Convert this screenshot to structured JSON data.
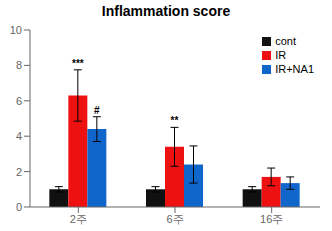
{
  "chart_data": {
    "type": "bar",
    "title": "Inflammation score",
    "categories": [
      "2주",
      "6주",
      "16주"
    ],
    "series": [
      {
        "name": "cont",
        "color": "#111111",
        "values": [
          1.0,
          1.0,
          1.0
        ],
        "errors": [
          0.15,
          0.15,
          0.15
        ]
      },
      {
        "name": "IR",
        "color": "#ee1111",
        "values": [
          6.3,
          3.4,
          1.7
        ],
        "errors": [
          1.45,
          1.1,
          0.5
        ]
      },
      {
        "name": "IR+NA1",
        "color": "#1166cc",
        "values": [
          4.4,
          2.4,
          1.35
        ],
        "errors": [
          0.7,
          1.05,
          0.35
        ]
      }
    ],
    "ylim": [
      0,
      10
    ],
    "yticks": [
      0,
      2,
      4,
      6,
      8,
      10
    ],
    "annotations": [
      {
        "text": "***",
        "category": "2주",
        "series": "IR"
      },
      {
        "text": "#",
        "category": "2주",
        "series": "IR+NA1"
      },
      {
        "text": "**",
        "category": "6주",
        "series": "IR"
      }
    ],
    "grid": false,
    "legend": "upper right"
  }
}
